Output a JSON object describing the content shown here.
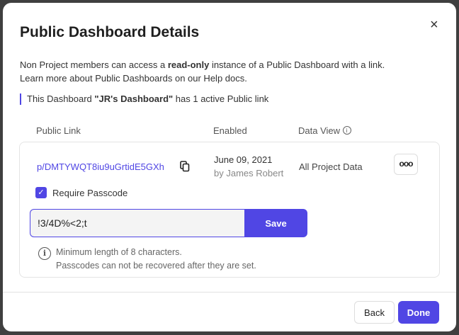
{
  "dialog": {
    "title": "Public Dashboard Details",
    "close_icon": "×"
  },
  "description": {
    "part1": "Non Project members can access a ",
    "bold": "read-only",
    "part2": " instance of a Public Dashboard with a link.",
    "line2": "Learn more about Public Dashboards on our Help docs."
  },
  "note": {
    "part1": "This Dashboard ",
    "bold": "\"JR's Dashboard\"",
    "part2": " has 1 active Public link"
  },
  "columns": {
    "link": "Public Link",
    "enabled": "Enabled",
    "data_view": "Data View"
  },
  "row": {
    "link": "p/DMTYWQT8iu9uGrtidE5GXh",
    "date": "June 09, 2021",
    "by": "by James Robert",
    "data_view": "All Project Data",
    "more": "ooo"
  },
  "passcode": {
    "checkbox_label": "Require Passcode",
    "checked": true,
    "value": "!3/4D%<2;t",
    "save": "Save",
    "hint1": "Minimum length of 8 characters.",
    "hint2": "Passcodes can not be recovered after they are set."
  },
  "footer": {
    "back": "Back",
    "done": "Done"
  },
  "colors": {
    "accent": "#5046e4"
  }
}
